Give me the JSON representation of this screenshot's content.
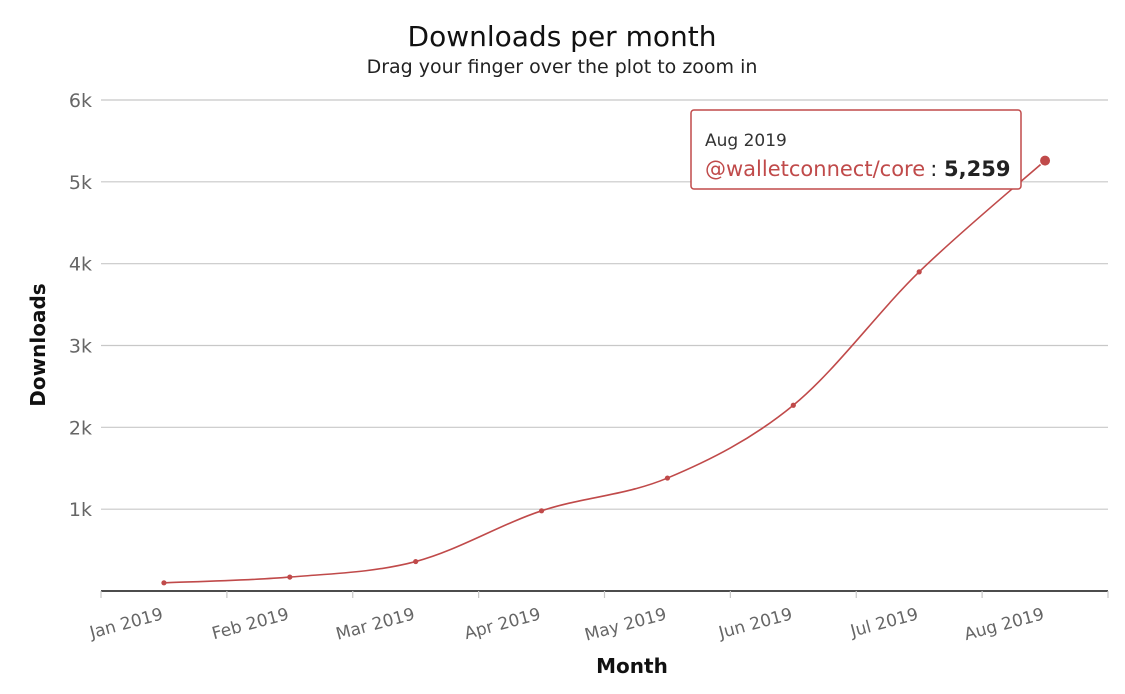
{
  "chart_data": {
    "type": "line",
    "title": "Downloads per month",
    "subtitle": "Drag your finger over the plot to zoom in",
    "xlabel": "Month",
    "ylabel": "Downloads",
    "categories": [
      "Jan 2019",
      "Feb 2019",
      "Mar 2019",
      "Apr 2019",
      "May 2019",
      "Jun 2019",
      "Jul 2019",
      "Aug 2019"
    ],
    "series": [
      {
        "name": "@walletconnect/core",
        "values": [
          100,
          170,
          360,
          980,
          1380,
          2270,
          3900,
          5259
        ],
        "color": "#c04a4a"
      }
    ],
    "ylim": [
      0,
      6000
    ],
    "y_ticks": [
      {
        "value": 1000,
        "label": "1k"
      },
      {
        "value": 2000,
        "label": "2k"
      },
      {
        "value": 3000,
        "label": "3k"
      },
      {
        "value": 4000,
        "label": "4k"
      },
      {
        "value": 5000,
        "label": "5k"
      },
      {
        "value": 6000,
        "label": "6k"
      }
    ],
    "grid": true,
    "legend": "none",
    "tooltip": {
      "date": "Aug 2019",
      "series": "@walletconnect/core",
      "value": "5,259"
    }
  }
}
